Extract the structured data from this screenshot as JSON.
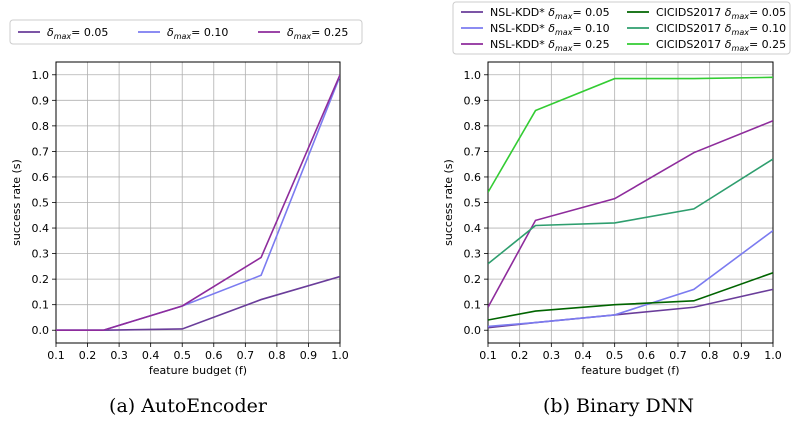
{
  "chart_data": [
    {
      "type": "line",
      "caption": "(a) AutoEncoder",
      "xlabel": "feature budget (f)",
      "ylabel": "success rate (s)",
      "xlim": [
        0.1,
        1.0
      ],
      "ylim": [
        -0.05,
        1.05
      ],
      "xticks": [
        "0.1",
        "0.2",
        "0.3",
        "0.4",
        "0.5",
        "0.6",
        "0.7",
        "0.8",
        "0.9",
        "1.0"
      ],
      "yticks": [
        "0.0",
        "0.1",
        "0.2",
        "0.3",
        "0.4",
        "0.5",
        "0.6",
        "0.7",
        "0.8",
        "0.9",
        "1.0"
      ],
      "grid": true,
      "legend_position": "top",
      "series": [
        {
          "name": "δmax= 0.05",
          "name_sym": "δ",
          "name_sub": "max",
          "name_rest": "= 0.05",
          "color": "#6a3d9a",
          "x": [
            0.1,
            0.25,
            0.5,
            0.75,
            1.0
          ],
          "y": [
            0.0,
            0.0,
            0.005,
            0.12,
            0.21
          ]
        },
        {
          "name": "δmax= 0.10",
          "name_sym": "δ",
          "name_sub": "max",
          "name_rest": "= 0.10",
          "color": "#7b7bf0",
          "x": [
            0.1,
            0.25,
            0.5,
            0.75,
            1.0
          ],
          "y": [
            0.0,
            0.0,
            0.095,
            0.215,
            0.995
          ]
        },
        {
          "name": "δmax= 0.25",
          "name_sym": "δ",
          "name_sub": "max",
          "name_rest": "= 0.25",
          "color": "#8e2c9c",
          "x": [
            0.1,
            0.25,
            0.5,
            0.75,
            1.0
          ],
          "y": [
            0.0,
            0.0,
            0.095,
            0.285,
            1.0
          ]
        }
      ]
    },
    {
      "type": "line",
      "caption": "(b) Binary DNN",
      "xlabel": "feature budget (f)",
      "ylabel": "success rate (s)",
      "xlim": [
        0.1,
        1.0
      ],
      "ylim": [
        -0.05,
        1.05
      ],
      "xticks": [
        "0.1",
        "0.2",
        "0.3",
        "0.4",
        "0.5",
        "0.6",
        "0.7",
        "0.8",
        "0.9",
        "1.0"
      ],
      "yticks": [
        "0.0",
        "0.1",
        "0.2",
        "0.3",
        "0.4",
        "0.5",
        "0.6",
        "0.7",
        "0.8",
        "0.9",
        "1.0"
      ],
      "grid": true,
      "legend_position": "top",
      "series": [
        {
          "name": "NSL-KDD* δmax= 0.05",
          "name_pre": "NSL-KDD* ",
          "name_sym": "δ",
          "name_sub": "max",
          "name_rest": "= 0.05",
          "color": "#6a3d9a",
          "x": [
            0.1,
            0.25,
            0.5,
            0.75,
            1.0
          ],
          "y": [
            0.01,
            0.03,
            0.06,
            0.09,
            0.16
          ]
        },
        {
          "name": "NSL-KDD* δmax= 0.10",
          "name_pre": "NSL-KDD* ",
          "name_sym": "δ",
          "name_sub": "max",
          "name_rest": "= 0.10",
          "color": "#7b7bf0",
          "x": [
            0.1,
            0.25,
            0.5,
            0.75,
            1.0
          ],
          "y": [
            0.015,
            0.03,
            0.06,
            0.16,
            0.39
          ]
        },
        {
          "name": "NSL-KDD* δmax= 0.25",
          "name_pre": "NSL-KDD* ",
          "name_sym": "δ",
          "name_sub": "max",
          "name_rest": "= 0.25",
          "color": "#8e2c9c",
          "x": [
            0.1,
            0.25,
            0.5,
            0.75,
            1.0
          ],
          "y": [
            0.09,
            0.43,
            0.515,
            0.695,
            0.82
          ]
        },
        {
          "name": "CICIDS2017 δmax= 0.05",
          "name_pre": "CICIDS2017 ",
          "name_sym": "δ",
          "name_sub": "max",
          "name_rest": "= 0.05",
          "color": "#006400",
          "x": [
            0.1,
            0.25,
            0.5,
            0.75,
            1.0
          ],
          "y": [
            0.04,
            0.075,
            0.1,
            0.115,
            0.225
          ]
        },
        {
          "name": "CICIDS2017 δmax= 0.10",
          "name_pre": "CICIDS2017 ",
          "name_sym": "δ",
          "name_sub": "max",
          "name_rest": "= 0.10",
          "color": "#2e9e6e",
          "x": [
            0.1,
            0.25,
            0.5,
            0.75,
            1.0
          ],
          "y": [
            0.26,
            0.41,
            0.42,
            0.475,
            0.67
          ]
        },
        {
          "name": "CICIDS2017 δmax= 0.25",
          "name_pre": "CICIDS2017 ",
          "name_sym": "δ",
          "name_sub": "max",
          "name_rest": "= 0.25",
          "color": "#33cc33",
          "x": [
            0.1,
            0.25,
            0.5,
            0.75,
            1.0
          ],
          "y": [
            0.54,
            0.86,
            0.985,
            0.985,
            0.99
          ]
        }
      ]
    }
  ]
}
